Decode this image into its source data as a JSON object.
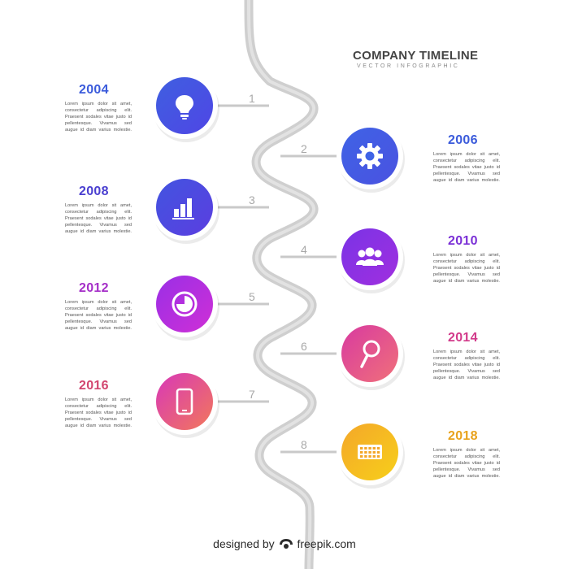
{
  "header": {
    "title": "COMPANY TIMELINE",
    "subtitle": "VECTOR INFOGRAPHIC"
  },
  "footer": {
    "prefix": "designed by",
    "brand": "freepik.com"
  },
  "milestones": [
    {
      "step": "1",
      "year": "2004",
      "icon": "lightbulb-icon",
      "color": "#3b5bdb",
      "grad": [
        "#3f5fe0",
        "#4f46e5"
      ],
      "lines": [
        "Lorem ipsum dolor sit amet,",
        "consectetur adipiscing elit.",
        "Praesent sodales vitae justo id",
        "pellentesque. Vivamus sed",
        "augue id diam varius molestie."
      ]
    },
    {
      "step": "2",
      "year": "2006",
      "icon": "gear-icon",
      "color": "#3b5bdb",
      "grad": [
        "#3f63e6",
        "#4a52e0"
      ],
      "lines": [
        "Lorem ipsum dolor sit amet,",
        "consectetur adipiscing elit.",
        "Praesent sodales vitae justo id",
        "pellentesque. Vivamus sed",
        "augue id diam varius molestie."
      ]
    },
    {
      "step": "3",
      "year": "2008",
      "icon": "bar-chart-icon",
      "color": "#4a3fd0",
      "grad": [
        "#4254e0",
        "#5b3ee0"
      ],
      "lines": [
        "Lorem ipsum dolor sit amet,",
        "consectetur adipiscing elit.",
        "Praesent sodales vitae justo id",
        "pellentesque. Vivamus sed",
        "augue id diam varius molestie."
      ]
    },
    {
      "step": "4",
      "year": "2010",
      "icon": "users-icon",
      "color": "#7a2fd6",
      "grad": [
        "#7a33e6",
        "#a02fdf"
      ],
      "lines": [
        "Lorem ipsum dolor sit amet,",
        "consectetur adipiscing elit.",
        "Praesent sodales vitae justo id",
        "pellentesque. Vivamus sed",
        "augue id diam varius molestie."
      ]
    },
    {
      "step": "5",
      "year": "2012",
      "icon": "pie-chart-icon",
      "color": "#a52fc8",
      "grad": [
        "#9a2fe6",
        "#cf2fd6"
      ],
      "lines": [
        "Lorem ipsum dolor sit amet,",
        "consectetur adipiscing elit.",
        "Praesent sodales vitae justo id",
        "pellentesque. Vivamus sed",
        "augue id diam varius molestie."
      ]
    },
    {
      "step": "6",
      "year": "2014",
      "icon": "search-icon",
      "color": "#d23a8a",
      "grad": [
        "#d83aa0",
        "#f0707a"
      ],
      "lines": [
        "Lorem ipsum dolor sit amet,",
        "consectetur adipiscing elit.",
        "Praesent sodales vitae justo id",
        "pellentesque. Vivamus sed",
        "augue id diam varius molestie."
      ]
    },
    {
      "step": "7",
      "year": "2016",
      "icon": "smartphone-icon",
      "color": "#d2456e",
      "grad": [
        "#d838b8",
        "#f2785a"
      ],
      "lines": [
        "Lorem ipsum dolor sit amet,",
        "consectetur adipiscing elit.",
        "Praesent sodales vitae justo id",
        "pellentesque. Vivamus sed",
        "augue id diam varius molestie."
      ]
    },
    {
      "step": "8",
      "year": "2018",
      "icon": "keyboard-icon",
      "color": "#e8a21c",
      "grad": [
        "#f4a72a",
        "#f7cf1a"
      ],
      "lines": [
        "Lorem ipsum dolor sit amet,",
        "consectetur adipiscing elit.",
        "Praesent sodales vitae justo id",
        "pellentesque. Vivamus sed",
        "augue id diam varius molestie."
      ]
    }
  ]
}
